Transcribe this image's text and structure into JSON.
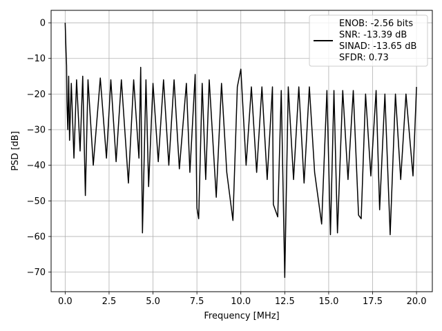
{
  "chart_data": {
    "type": "line",
    "title": "",
    "xlabel": "Frequency [MHz]",
    "ylabel": "PSD [dB]",
    "xlim": [
      -0.8,
      20.9
    ],
    "ylim": [
      -75.5,
      3.5
    ],
    "grid": true,
    "legend_placement": "top-right",
    "x_ticks": [
      0.0,
      2.5,
      5.0,
      7.5,
      10.0,
      12.5,
      15.0,
      17.5,
      20.0
    ],
    "x_tick_labels": [
      "0.0",
      "2.5",
      "5.0",
      "7.5",
      "10.0",
      "12.5",
      "15.0",
      "17.5",
      "20.0"
    ],
    "y_ticks": [
      0,
      -10,
      -20,
      -30,
      -40,
      -50,
      -60,
      -70
    ],
    "y_tick_labels": [
      "0",
      "−10",
      "−20",
      "−30",
      "−40",
      "−50",
      "−60",
      "−70"
    ],
    "series": [
      {
        "name": "ENOB: -2.56 bits\nSNR: -13.39 dB\nSINAD: -13.65 dB\nSFDR: 0.73",
        "legend_lines": [
          "ENOB: -2.56 bits",
          "SNR: -13.39 dB",
          "SINAD: -13.65 dB",
          "SFDR: 0.73"
        ],
        "color": "#000000",
        "points": [
          [
            0.0,
            0.0
          ],
          [
            0.02,
            -3.0
          ],
          [
            0.05,
            -8.0
          ],
          [
            0.08,
            -12.0
          ],
          [
            0.1,
            -22.0
          ],
          [
            0.15,
            -30.0
          ],
          [
            0.2,
            -15.0
          ],
          [
            0.25,
            -33.0
          ],
          [
            0.35,
            -17.0
          ],
          [
            0.5,
            -38.0
          ],
          [
            0.65,
            -16.0
          ],
          [
            0.85,
            -36.0
          ],
          [
            1.0,
            -15.0
          ],
          [
            1.15,
            -48.5
          ],
          [
            1.3,
            -16.0
          ],
          [
            1.6,
            -40.0
          ],
          [
            2.0,
            -15.5
          ],
          [
            2.35,
            -38.0
          ],
          [
            2.6,
            -16.0
          ],
          [
            2.9,
            -39.0
          ],
          [
            3.2,
            -16.0
          ],
          [
            3.6,
            -45.0
          ],
          [
            3.9,
            -16.0
          ],
          [
            4.2,
            -38.0
          ],
          [
            4.3,
            -12.5
          ],
          [
            4.4,
            -59.0
          ],
          [
            4.6,
            -16.0
          ],
          [
            4.75,
            -46.0
          ],
          [
            5.0,
            -17.0
          ],
          [
            5.3,
            -39.0
          ],
          [
            5.6,
            -16.0
          ],
          [
            5.9,
            -40.0
          ],
          [
            6.2,
            -16.0
          ],
          [
            6.5,
            -41.0
          ],
          [
            6.9,
            -17.0
          ],
          [
            7.1,
            -42.0
          ],
          [
            7.4,
            -14.5
          ],
          [
            7.5,
            -52.0
          ],
          [
            7.6,
            -55.0
          ],
          [
            7.8,
            -17.0
          ],
          [
            8.0,
            -44.0
          ],
          [
            8.2,
            -16.0
          ],
          [
            8.6,
            -49.0
          ],
          [
            8.9,
            -17.0
          ],
          [
            9.2,
            -42.0
          ],
          [
            9.55,
            -55.5
          ],
          [
            9.8,
            -18.0
          ],
          [
            10.0,
            -13.0
          ],
          [
            10.3,
            -40.0
          ],
          [
            10.6,
            -18.0
          ],
          [
            10.9,
            -42.0
          ],
          [
            11.2,
            -18.0
          ],
          [
            11.5,
            -44.0
          ],
          [
            11.8,
            -18.0
          ],
          [
            11.85,
            -51.0
          ],
          [
            12.1,
            -54.5
          ],
          [
            12.3,
            -19.0
          ],
          [
            12.5,
            -71.5
          ],
          [
            12.7,
            -18.0
          ],
          [
            13.0,
            -44.0
          ],
          [
            13.3,
            -18.0
          ],
          [
            13.6,
            -45.0
          ],
          [
            13.9,
            -18.0
          ],
          [
            14.2,
            -42.0
          ],
          [
            14.6,
            -56.5
          ],
          [
            14.9,
            -19.0
          ],
          [
            15.1,
            -59.5
          ],
          [
            15.3,
            -19.0
          ],
          [
            15.5,
            -59.0
          ],
          [
            15.8,
            -19.0
          ],
          [
            16.1,
            -44.0
          ],
          [
            16.4,
            -19.0
          ],
          [
            16.7,
            -54.0
          ],
          [
            16.85,
            -55.0
          ],
          [
            17.1,
            -20.0
          ],
          [
            17.4,
            -43.0
          ],
          [
            17.7,
            -19.0
          ],
          [
            17.9,
            -52.5
          ],
          [
            18.2,
            -20.0
          ],
          [
            18.5,
            -59.5
          ],
          [
            18.8,
            -20.0
          ],
          [
            19.1,
            -44.0
          ],
          [
            19.4,
            -20.0
          ],
          [
            19.8,
            -43.0
          ],
          [
            20.0,
            -18.0
          ]
        ]
      }
    ]
  }
}
